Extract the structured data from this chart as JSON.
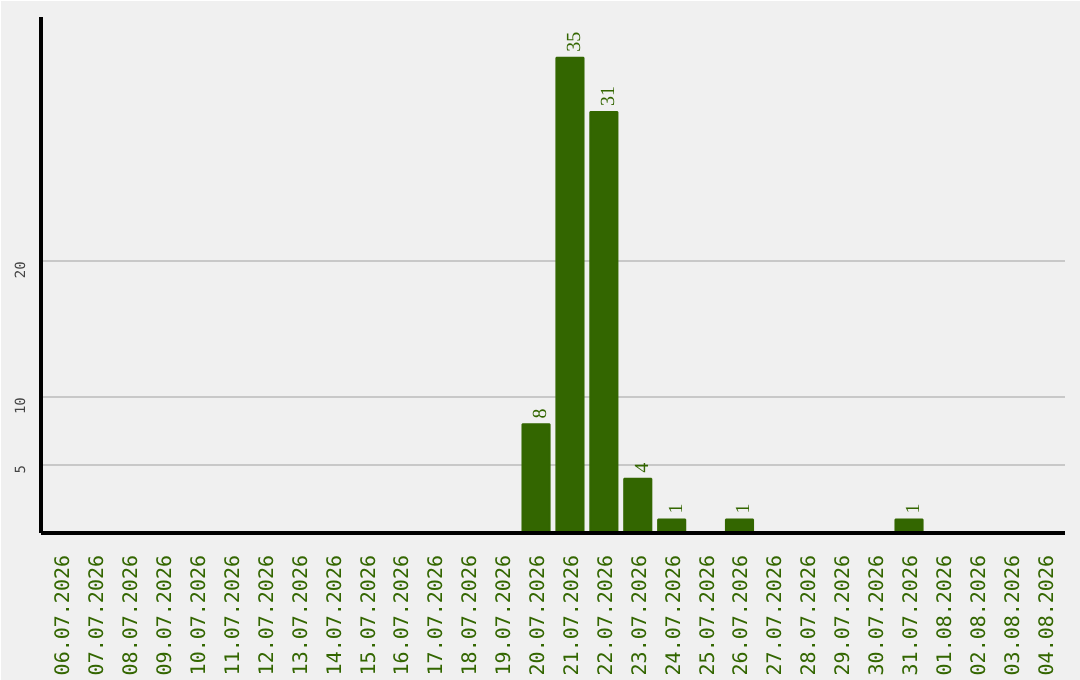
{
  "chart_data": {
    "type": "bar",
    "categories": [
      "06.07.2026",
      "07.07.2026",
      "08.07.2026",
      "09.07.2026",
      "10.07.2026",
      "11.07.2026",
      "12.07.2026",
      "13.07.2026",
      "14.07.2026",
      "15.07.2026",
      "16.07.2026",
      "17.07.2026",
      "18.07.2026",
      "19.07.2026",
      "20.07.2026",
      "21.07.2026",
      "22.07.2026",
      "23.07.2026",
      "24.07.2026",
      "25.07.2026",
      "26.07.2026",
      "27.07.2026",
      "28.07.2026",
      "29.07.2026",
      "30.07.2026",
      "31.07.2026",
      "01.08.2026",
      "02.08.2026",
      "03.08.2026",
      "04.08.2026"
    ],
    "values": [
      0,
      0,
      0,
      0,
      0,
      0,
      0,
      0,
      0,
      0,
      0,
      0,
      0,
      0,
      8,
      35,
      31,
      4,
      1,
      0,
      1,
      0,
      0,
      0,
      0,
      1,
      0,
      0,
      0,
      0
    ],
    "value_labels": [
      null,
      null,
      null,
      null,
      null,
      null,
      null,
      null,
      null,
      null,
      null,
      null,
      null,
      null,
      "8",
      "35",
      "31",
      "4",
      "1",
      null,
      "1",
      null,
      null,
      null,
      null,
      "1",
      null,
      null,
      null,
      null
    ],
    "color": "#336600",
    "ylim": [
      0,
      38
    ],
    "yticks": [
      5,
      10,
      20
    ],
    "grid": "y"
  }
}
